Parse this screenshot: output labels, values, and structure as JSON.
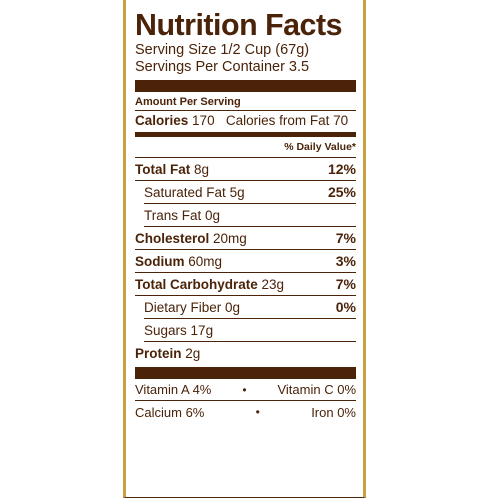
{
  "label": {
    "title": "Nutrition Facts",
    "serving_size": "Serving Size 1/2 Cup (67g)",
    "servings_per_container": "Servings Per Container 3.5",
    "amount_per_serving": "Amount Per Serving",
    "calories_label": "Calories",
    "calories_value": "170",
    "calories_from_fat": "Calories from Fat 70",
    "daily_value_header": "% Daily Value*",
    "nutrients": [
      {
        "name": "Total Fat",
        "amount": "8g",
        "dv": "12%"
      },
      {
        "name": "Saturated Fat",
        "amount": "5g",
        "dv": "25%"
      },
      {
        "name": "Trans Fat",
        "amount": "0g",
        "dv": ""
      },
      {
        "name": "Cholesterol",
        "amount": "20mg",
        "dv": "7%"
      },
      {
        "name": "Sodium",
        "amount": "60mg",
        "dv": "3%"
      },
      {
        "name": "Total Carbohydrate",
        "amount": "23g",
        "dv": "7%"
      },
      {
        "name": "Dietary Fiber",
        "amount": "0g",
        "dv": "0%"
      },
      {
        "name": "Sugars",
        "amount": "17g",
        "dv": ""
      },
      {
        "name": "Protein",
        "amount": "2g",
        "dv": ""
      }
    ],
    "vitamins": [
      {
        "left": "Vitamin A 4%",
        "right": "Vitamin C 0%"
      },
      {
        "left": "Calcium 6%",
        "right": "Iron 0%"
      }
    ],
    "bullet": "•"
  },
  "colors": {
    "text": "#4a2309",
    "border_accent": "#c8a040",
    "background": "#ffffff"
  }
}
